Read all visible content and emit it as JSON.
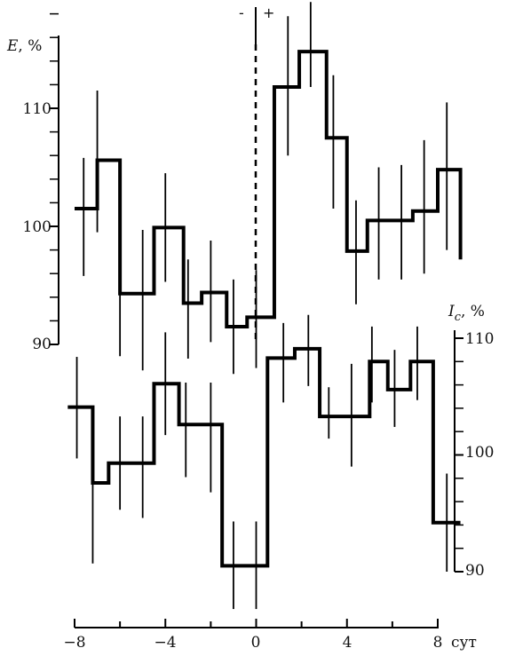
{
  "chart_data": {
    "type": "line",
    "style": "step with error bars",
    "x_axis": {
      "ticks": [
        -8,
        -4,
        0,
        4,
        8
      ],
      "tick_labels": [
        "−8",
        "−4",
        "0",
        "4",
        "8"
      ],
      "unit_label": "сут",
      "range": [
        -8,
        9
      ]
    },
    "zero_line": {
      "x": 0,
      "style": "dashed",
      "left_sign": "-",
      "right_sign": "+"
    },
    "series": [
      {
        "name": "E",
        "axis_title_symbol": "E",
        "axis_title_unit": ", %",
        "axis_side": "left",
        "ticks": [
          90,
          100,
          110
        ],
        "ylim": [
          90,
          118
        ],
        "bins": [
          {
            "x0": -8.0,
            "x1": -7.0,
            "y": 101.5,
            "err_x": -7.6,
            "err_lo": 95.8,
            "err_hi": 105.8
          },
          {
            "x0": -7.0,
            "x1": -6.0,
            "y": 105.6,
            "err_x": -7.0,
            "err_lo": 99.5,
            "err_hi": 111.5
          },
          {
            "x0": -6.0,
            "x1": -4.5,
            "y": 94.3,
            "err_x": -6.0,
            "err_lo": 89.0,
            "err_hi": 99.0
          },
          {
            "x0": -4.5,
            "x1": -3.2,
            "y": 99.9,
            "err_x": -5.0,
            "err_lo": 87.8,
            "err_hi": 99.7
          },
          {
            "x0": -3.2,
            "x1": -2.4,
            "y": 93.5,
            "err_x": -4.0,
            "err_lo": 95.3,
            "err_hi": 104.5
          },
          {
            "x0": -2.4,
            "x1": -1.3,
            "y": 94.4,
            "err_x": -3.0,
            "err_lo": 88.8,
            "err_hi": 97.2
          },
          {
            "x0": -1.3,
            "x1": -0.4,
            "y": 91.5,
            "err_x": -2.0,
            "err_lo": 90.2,
            "err_hi": 98.8
          },
          {
            "x0": -0.4,
            "x1": 0.8,
            "y": 92.3,
            "err_x": -1.0,
            "err_lo": 87.5,
            "err_hi": 95.5
          },
          {
            "x0": 0.8,
            "x1": 1.9,
            "y": 111.8,
            "err_x": 0.0,
            "err_lo": 88.0,
            "err_hi": 96.3
          },
          {
            "x0": 1.9,
            "x1": 3.1,
            "y": 114.8,
            "err_x": 1.4,
            "err_lo": 106.0,
            "err_hi": 117.8
          },
          {
            "x0": 3.1,
            "x1": 4.0,
            "y": 107.5,
            "err_x": 2.4,
            "err_lo": 111.8,
            "err_hi": 119.0
          },
          {
            "x0": 4.0,
            "x1": 4.9,
            "y": 97.9,
            "err_x": 3.4,
            "err_lo": 101.5,
            "err_hi": 112.8
          },
          {
            "x0": 4.9,
            "x1": 6.9,
            "y": 100.5,
            "err_x": 4.4,
            "err_lo": 93.4,
            "err_hi": 102.2
          },
          {
            "x0": 6.9,
            "x1": 8.0,
            "y": 101.3,
            "err_x": 5.4,
            "err_lo": 95.5,
            "err_hi": 105.0
          },
          {
            "x0": 8.0,
            "x1": 9.0,
            "y": 104.8,
            "err_x": 6.4,
            "err_lo": 95.5,
            "err_hi": 105.2
          },
          {
            "x0": 9.0,
            "x1": 9.0,
            "y": 97.2,
            "err_x": 7.4,
            "err_lo": 96.0,
            "err_hi": 107.3
          },
          {
            "x0": 9.0,
            "x1": 9.0,
            "y": 97.2,
            "err_x": 8.4,
            "err_lo": 98.0,
            "err_hi": 110.5
          }
        ]
      },
      {
        "name": "Ic",
        "axis_title_symbol": "I",
        "axis_title_sub": "c",
        "axis_title_unit": ", %",
        "axis_side": "right",
        "ticks": [
          90,
          100,
          110
        ],
        "ylim": [
          90,
          110
        ],
        "bins": [
          {
            "x0": -8.3,
            "x1": -7.2,
            "y": 104.1,
            "err_x": -7.9,
            "err_lo": 99.7,
            "err_hi": 108.4
          },
          {
            "x0": -7.2,
            "x1": -6.5,
            "y": 97.6,
            "err_x": -7.2,
            "err_lo": 90.7,
            "err_hi": 102.9
          },
          {
            "x0": -6.5,
            "x1": -4.5,
            "y": 99.3,
            "err_x": -6.0,
            "err_lo": 95.3,
            "err_hi": 103.3
          },
          {
            "x0": -4.5,
            "x1": -3.4,
            "y": 106.1,
            "err_x": -5.0,
            "err_lo": 94.6,
            "err_hi": 103.3
          },
          {
            "x0": -3.4,
            "x1": -1.5,
            "y": 102.6,
            "err_x": -4.0,
            "err_lo": 101.7,
            "err_hi": 110.5
          },
          {
            "x0": -1.5,
            "x1": 0.5,
            "y": 90.5,
            "err_x": -3.1,
            "err_lo": 98.1,
            "err_hi": 106.2
          },
          {
            "x0": 0.5,
            "x1": 1.7,
            "y": 108.3,
            "err_x": -2.0,
            "err_lo": 96.8,
            "err_hi": 106.2
          },
          {
            "x0": 1.7,
            "x1": 2.8,
            "y": 109.1,
            "err_x": -1.0,
            "err_lo": 86.8,
            "err_hi": 94.3
          },
          {
            "x0": 2.8,
            "x1": 5.0,
            "y": 103.3,
            "err_x": 0.0,
            "err_lo": 86.8,
            "err_hi": 94.3
          },
          {
            "x0": 5.0,
            "x1": 5.8,
            "y": 108.0,
            "err_x": 1.2,
            "err_lo": 104.5,
            "err_hi": 111.3
          },
          {
            "x0": 5.8,
            "x1": 6.8,
            "y": 105.6,
            "err_x": 2.3,
            "err_lo": 105.9,
            "err_hi": 112.0
          },
          {
            "x0": 6.8,
            "x1": 7.8,
            "y": 108.0,
            "err_x": 3.2,
            "err_lo": 101.4,
            "err_hi": 105.8
          },
          {
            "x0": 7.8,
            "x1": 9.0,
            "y": 94.2,
            "err_x": 4.2,
            "err_lo": 99.0,
            "err_hi": 107.8
          },
          {
            "x0": 9.0,
            "x1": 9.0,
            "y": 94.2,
            "err_x": 5.1,
            "err_lo": 104.5,
            "err_hi": 111.0
          },
          {
            "x0": 9.0,
            "x1": 9.0,
            "y": 94.2,
            "err_x": 6.1,
            "err_lo": 102.4,
            "err_hi": 109.0
          },
          {
            "x0": 9.0,
            "x1": 9.0,
            "y": 94.2,
            "err_x": 7.1,
            "err_lo": 104.7,
            "err_hi": 111.0
          },
          {
            "x0": 9.0,
            "x1": 9.0,
            "y": 94.2,
            "err_x": 8.4,
            "err_lo": 90.0,
            "err_hi": 98.4
          }
        ]
      }
    ]
  }
}
